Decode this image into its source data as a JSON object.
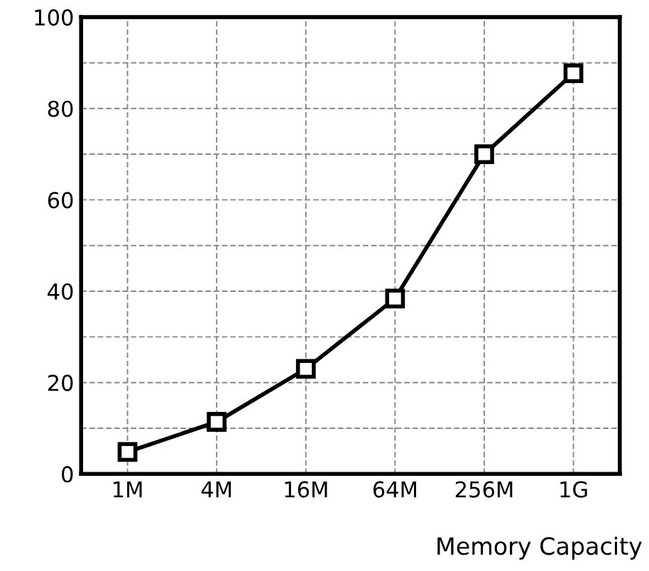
{
  "chart_data": {
    "type": "line",
    "xlabel": "Memory Capacity",
    "categories": [
      "1M",
      "4M",
      "16M",
      "64M",
      "256M",
      "1G"
    ],
    "series": [
      {
        "color": "#000000",
        "values": [
          4.8,
          11.4,
          23,
          38.4,
          70,
          87.7
        ]
      }
    ],
    "ylim": [
      0,
      100
    ],
    "yticks": [
      0,
      {
        "value": 10,
        "label": null
      },
      20,
      {
        "value": 30,
        "label": null
      },
      40,
      {
        "value": 50,
        "label": null
      },
      60,
      {
        "value": 70,
        "label": null
      },
      80,
      {
        "value": 90,
        "label": null
      },
      100
    ],
    "grid": true,
    "marker": "square",
    "line_style": "solid"
  }
}
